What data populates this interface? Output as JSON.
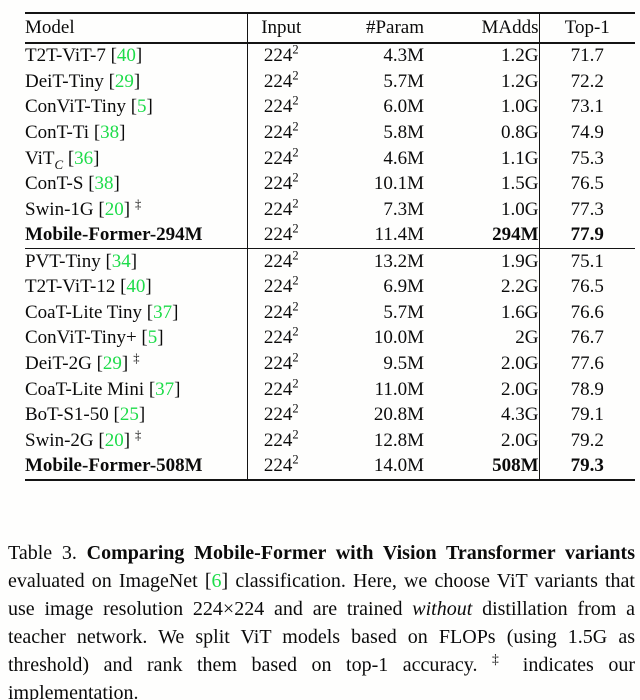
{
  "colors": {
    "citation_green": "#1edc4a",
    "text_black": "#0b0b0b"
  },
  "table": {
    "headers": [
      "Model",
      "Input",
      "#Param",
      "MAdds",
      "Top-1"
    ],
    "groups": [
      {
        "rows": [
          {
            "name": "T2T-ViT-7",
            "cite": "40",
            "input": "224^2",
            "param": "4.3M",
            "madds": "1.2G",
            "top1": "71.7"
          },
          {
            "name": "DeiT-Tiny",
            "cite": "29",
            "input": "224^2",
            "param": "5.7M",
            "madds": "1.2G",
            "top1": "72.2"
          },
          {
            "name": "ConViT-Tiny",
            "cite": "5",
            "input": "224^2",
            "param": "6.0M",
            "madds": "1.0G",
            "top1": "73.1"
          },
          {
            "name": "ConT-Ti",
            "cite": "38",
            "input": "224^2",
            "param": "5.8M",
            "madds": "0.8G",
            "top1": "74.9"
          },
          {
            "name": "ViT",
            "sub": "C",
            "cite": "36",
            "input": "224^2",
            "param": "4.6M",
            "madds": "1.1G",
            "top1": "75.3"
          },
          {
            "name": "ConT-S",
            "cite": "38",
            "input": "224^2",
            "param": "10.1M",
            "madds": "1.5G",
            "top1": "76.5"
          },
          {
            "name": "Swin-1G",
            "cite": "20",
            "dagger": true,
            "input": "224^2",
            "param": "7.3M",
            "madds": "1.0G",
            "top1": "77.3"
          },
          {
            "name": "Mobile-Former-294M",
            "bold": true,
            "input": "224^2",
            "param": "11.4M",
            "madds": "294M",
            "madds_bold": true,
            "top1": "77.9",
            "top1_bold": true
          }
        ]
      },
      {
        "rows": [
          {
            "name": "PVT-Tiny",
            "cite": "34",
            "input": "224^2",
            "param": "13.2M",
            "madds": "1.9G",
            "top1": "75.1"
          },
          {
            "name": "T2T-ViT-12",
            "cite": "40",
            "input": "224^2",
            "param": "6.9M",
            "madds": "2.2G",
            "top1": "76.5"
          },
          {
            "name": "CoaT-Lite Tiny",
            "cite": "37",
            "input": "224^2",
            "param": "5.7M",
            "madds": "1.6G",
            "top1": "76.6"
          },
          {
            "name": "ConViT-Tiny+",
            "cite": "5",
            "input": "224^2",
            "param": "10.0M",
            "madds": "2G",
            "top1": "76.7"
          },
          {
            "name": "DeiT-2G",
            "cite": "29",
            "dagger": true,
            "input": "224^2",
            "param": "9.5M",
            "madds": "2.0G",
            "top1": "77.6"
          },
          {
            "name": "CoaT-Lite Mini",
            "cite": "37",
            "input": "224^2",
            "param": "11.0M",
            "madds": "2.0G",
            "top1": "78.9"
          },
          {
            "name": "BoT-S1-50",
            "cite": "25",
            "input": "224^2",
            "param": "20.8M",
            "madds": "4.3G",
            "top1": "79.1"
          },
          {
            "name": "Swin-2G",
            "cite": "20",
            "dagger": true,
            "input": "224^2",
            "param": "12.8M",
            "madds": "2.0G",
            "top1": "79.2"
          },
          {
            "name": "Mobile-Former-508M",
            "bold": true,
            "input": "224^2",
            "param": "14.0M",
            "madds": "508M",
            "madds_bold": true,
            "top1": "79.3",
            "top1_bold": true
          }
        ]
      }
    ]
  },
  "caption": {
    "segments": [
      {
        "t": "Table 3. ",
        "s": "normal"
      },
      {
        "t": "Comparing Mobile-Former with Vision Transformer variants",
        "s": "bold"
      },
      {
        "t": " evaluated on ImageNet [",
        "s": "normal"
      },
      {
        "t": "6",
        "s": "cite"
      },
      {
        "t": "] classification.  Here, we choose ViT variants that use image resolution 224×224 and are trained ",
        "s": "normal"
      },
      {
        "t": "without",
        "s": "italic"
      },
      {
        "t": " distillation from a teacher network.  We split ViT models based on FLOPs (using 1.5G as threshold) and rank them based on top-1 accuracy. ",
        "s": "normal"
      },
      {
        "t": "‡",
        "s": "sup"
      },
      {
        "t": " indicates our implementation.",
        "s": "normal"
      }
    ]
  }
}
